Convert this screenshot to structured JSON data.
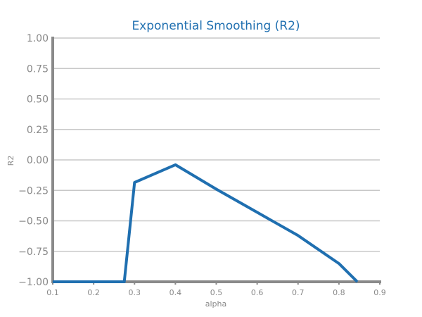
{
  "chart_data": {
    "type": "line",
    "title": "Exponential Smoothing (R2)",
    "xlabel": "alpha",
    "ylabel": "R2",
    "xlim": [
      0.1,
      0.9
    ],
    "ylim": [
      -1.0,
      1.0
    ],
    "xticks": [
      0.1,
      0.2,
      0.3,
      0.4,
      0.5,
      0.6,
      0.7,
      0.8,
      0.9
    ],
    "xtick_labels": [
      "0.1",
      "0.2",
      "0.3",
      "0.4",
      "0.5",
      "0.6",
      "0.7",
      "0.8",
      "0.9"
    ],
    "yticks": [
      1.0,
      0.75,
      0.5,
      0.25,
      0.0,
      -0.25,
      -0.5,
      -0.75,
      -1.0
    ],
    "ytick_labels": [
      "1.00",
      "0.75",
      "0.50",
      "0.25",
      "0.00",
      "−0.25",
      "−0.50",
      "−0.75",
      "−1.00"
    ],
    "grid": true,
    "colors": {
      "series": "#1f6fb0",
      "title": "#1f6fb0",
      "grid": "#c8c8c8",
      "axis": "#8a8a8a"
    },
    "series": [
      {
        "x": [
          0.1,
          0.2,
          0.275,
          0.3,
          0.4,
          0.5,
          0.6,
          0.7,
          0.8,
          0.845
        ],
        "values": [
          -1.0,
          -1.0,
          -1.0,
          -0.185,
          -0.04,
          -0.24,
          -0.43,
          -0.62,
          -0.85,
          -1.0
        ]
      }
    ]
  }
}
